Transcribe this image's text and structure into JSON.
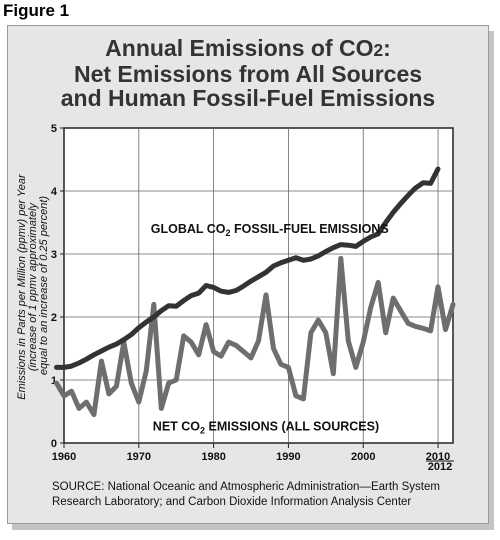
{
  "figure_label": "Figure 1",
  "source_note": {
    "line1": "SOURCE: National Oceanic and Atmospheric Administration—Earth System",
    "line2": "Research Laboratory; and Carbon Dioxide Information Analysis Center"
  },
  "colors": {
    "panel_background": "#e6e6e6",
    "plot_background": "#ffffff",
    "fossil_series": "#333333",
    "net_series": "#6e6e6e"
  },
  "chart_data": {
    "type": "line",
    "title": {
      "line1_prefix": "Annual Emissions of CO",
      "line1_sub": "2",
      "line1_suffix": ":",
      "line2": "Net Emissions from All Sources",
      "line3": "and Human Fossil-Fuel Emissions"
    },
    "ylabel": {
      "line1": "Emissions in Parts per Million (ppmv) per Year",
      "line2": "(increase of 1 ppmv approximately",
      "line3": "equal to an increase of 0.25 percent)"
    },
    "xlabel": "",
    "xlim": [
      1960,
      2012
    ],
    "ylim": [
      0,
      5
    ],
    "x_ticks": [
      1960,
      1970,
      1980,
      1990,
      2000,
      2010
    ],
    "x_tick_labels": [
      "1960",
      "1970",
      "1980",
      "1990",
      "2000",
      "2010"
    ],
    "x_end_label": "2012",
    "y_ticks": [
      0,
      1,
      2,
      3,
      4,
      5
    ],
    "y_tick_labels": [
      "0",
      "1",
      "2",
      "3",
      "4",
      "5"
    ],
    "grid": true,
    "series": [
      {
        "name": "GLOBAL CO₂ FOSSIL-FUEL EMISSIONS",
        "label_main": "GLOBAL CO",
        "label_sub": "2",
        "label_rest": " FOSSIL-FUEL EMISSIONS",
        "x": [
          1959,
          1960,
          1961,
          1962,
          1963,
          1964,
          1965,
          1966,
          1967,
          1968,
          1969,
          1970,
          1971,
          1972,
          1973,
          1974,
          1975,
          1976,
          1977,
          1978,
          1979,
          1980,
          1981,
          1982,
          1983,
          1984,
          1985,
          1986,
          1987,
          1988,
          1989,
          1990,
          1991,
          1992,
          1993,
          1994,
          1995,
          1996,
          1997,
          1998,
          1999,
          2000,
          2001,
          2002,
          2003,
          2004,
          2005,
          2006,
          2007,
          2008,
          2009,
          2010
        ],
        "values": [
          1.2,
          1.2,
          1.22,
          1.27,
          1.33,
          1.4,
          1.46,
          1.52,
          1.57,
          1.64,
          1.72,
          1.83,
          1.92,
          2.0,
          2.1,
          2.18,
          2.17,
          2.26,
          2.34,
          2.38,
          2.5,
          2.47,
          2.41,
          2.39,
          2.42,
          2.49,
          2.57,
          2.64,
          2.71,
          2.81,
          2.86,
          2.9,
          2.94,
          2.9,
          2.92,
          2.97,
          3.04,
          3.1,
          3.15,
          3.14,
          3.12,
          3.2,
          3.27,
          3.32,
          3.5,
          3.66,
          3.8,
          3.93,
          4.05,
          4.13,
          4.12,
          4.35
        ]
      },
      {
        "name": "NET CO₂ EMISSIONS (ALL SOURCES)",
        "label_main": "NET CO",
        "label_sub": "2",
        "label_rest": " EMISSIONS (ALL SOURCES)",
        "x": [
          1959,
          1960,
          1961,
          1962,
          1963,
          1964,
          1965,
          1966,
          1967,
          1968,
          1969,
          1970,
          1971,
          1972,
          1973,
          1974,
          1975,
          1976,
          1977,
          1978,
          1979,
          1980,
          1981,
          1982,
          1983,
          1984,
          1985,
          1986,
          1987,
          1988,
          1989,
          1990,
          1991,
          1992,
          1993,
          1994,
          1995,
          1996,
          1997,
          1998,
          1999,
          2000,
          2001,
          2002,
          2003,
          2004,
          2005,
          2006,
          2007,
          2008,
          2009,
          2010,
          2011,
          2012
        ],
        "values": [
          0.95,
          0.75,
          0.82,
          0.55,
          0.65,
          0.45,
          1.3,
          0.78,
          0.9,
          1.6,
          0.95,
          0.65,
          1.15,
          2.2,
          0.55,
          0.95,
          1.0,
          1.7,
          1.6,
          1.4,
          1.88,
          1.45,
          1.38,
          1.6,
          1.55,
          1.45,
          1.35,
          1.62,
          2.35,
          1.5,
          1.25,
          1.2,
          0.75,
          0.7,
          1.75,
          1.95,
          1.75,
          1.1,
          2.93,
          1.62,
          1.2,
          1.6,
          2.15,
          2.55,
          1.75,
          2.3,
          2.1,
          1.9,
          1.85,
          1.82,
          1.78,
          2.48,
          1.8,
          2.2
        ]
      }
    ]
  }
}
